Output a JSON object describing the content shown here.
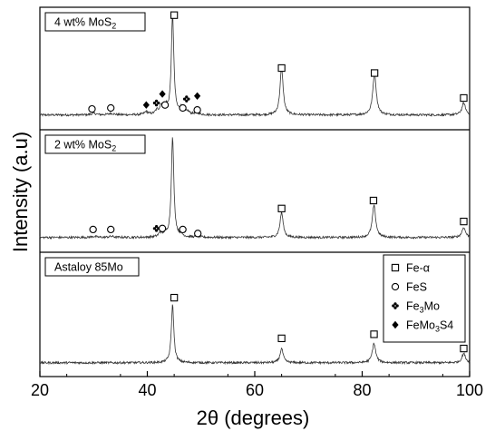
{
  "chart_data": {
    "type": "line",
    "title": "",
    "xlabel": "2θ (degrees)",
    "ylabel": "Intensity (a.u)",
    "xlim": [
      20,
      100
    ],
    "xticks": [
      20,
      40,
      60,
      80,
      100
    ],
    "grid": false,
    "legend_position": "top-right of bottom panel",
    "series": [
      {
        "panel": "top",
        "label": "4 wt% MoS",
        "label_sub": "2",
        "background": 0.03,
        "peaks": [
          {
            "x": 44.7,
            "h": 1.0,
            "w": 0.28
          },
          {
            "x": 65.0,
            "h": 0.47,
            "w": 0.35
          },
          {
            "x": 82.3,
            "h": 0.42,
            "w": 0.38
          },
          {
            "x": 98.9,
            "h": 0.12,
            "w": 0.4
          },
          {
            "x": 30.0,
            "h": 0.015,
            "w": 0.6
          },
          {
            "x": 33.3,
            "h": 0.015,
            "w": 0.6
          },
          {
            "x": 39.8,
            "h": 0.03,
            "w": 0.4
          },
          {
            "x": 41.8,
            "h": 0.04,
            "w": 0.4
          },
          {
            "x": 42.6,
            "h": 0.09,
            "w": 0.3
          },
          {
            "x": 43.5,
            "h": 0.07,
            "w": 0.3
          },
          {
            "x": 46.3,
            "h": 0.06,
            "w": 0.35
          },
          {
            "x": 47.5,
            "h": 0.03,
            "w": 0.4
          },
          {
            "x": 49.2,
            "h": 0.02,
            "w": 0.5
          }
        ],
        "markers": [
          {
            "x": 45.0,
            "y": 1.03,
            "symbol": "square"
          },
          {
            "x": 65.0,
            "y": 0.5,
            "symbol": "square"
          },
          {
            "x": 82.3,
            "y": 0.45,
            "symbol": "square"
          },
          {
            "x": 98.9,
            "y": 0.2,
            "symbol": "square"
          },
          {
            "x": 29.7,
            "y": 0.09,
            "symbol": "circle"
          },
          {
            "x": 33.2,
            "y": 0.1,
            "symbol": "circle"
          },
          {
            "x": 39.8,
            "y": 0.13,
            "symbol": "diamond"
          },
          {
            "x": 41.7,
            "y": 0.15,
            "symbol": "cross"
          },
          {
            "x": 42.8,
            "y": 0.24,
            "symbol": "diamond"
          },
          {
            "x": 43.3,
            "y": 0.13,
            "symbol": "circle"
          },
          {
            "x": 46.6,
            "y": 0.1,
            "symbol": "circle"
          },
          {
            "x": 47.3,
            "y": 0.19,
            "symbol": "cross"
          },
          {
            "x": 49.3,
            "y": 0.22,
            "symbol": "diamond"
          },
          {
            "x": 49.3,
            "y": 0.08,
            "symbol": "circle"
          }
        ]
      },
      {
        "panel": "middle",
        "label": "2 wt% MoS",
        "label_sub": "2",
        "background": 0.03,
        "peaks": [
          {
            "x": 44.7,
            "h": 1.0,
            "w": 0.28
          },
          {
            "x": 65.0,
            "h": 0.25,
            "w": 0.35
          },
          {
            "x": 82.2,
            "h": 0.32,
            "w": 0.38
          },
          {
            "x": 98.9,
            "h": 0.1,
            "w": 0.4
          },
          {
            "x": 30.0,
            "h": 0.01,
            "w": 0.6
          },
          {
            "x": 33.3,
            "h": 0.01,
            "w": 0.6
          },
          {
            "x": 42.4,
            "h": 0.04,
            "w": 0.35
          },
          {
            "x": 43.3,
            "h": 0.03,
            "w": 0.35
          },
          {
            "x": 46.3,
            "h": 0.02,
            "w": 0.4
          },
          {
            "x": 49.4,
            "h": 0.01,
            "w": 0.5
          }
        ],
        "markers": [
          {
            "x": 29.9,
            "y": 0.11,
            "symbol": "circle"
          },
          {
            "x": 33.2,
            "y": 0.11,
            "symbol": "circle"
          },
          {
            "x": 41.7,
            "y": 0.12,
            "symbol": "cross"
          },
          {
            "x": 42.8,
            "y": 0.12,
            "symbol": "circle"
          },
          {
            "x": 46.6,
            "y": 0.11,
            "symbol": "circle"
          },
          {
            "x": 49.4,
            "y": 0.07,
            "symbol": "circle"
          },
          {
            "x": 65.0,
            "y": 0.32,
            "symbol": "square"
          },
          {
            "x": 82.1,
            "y": 0.4,
            "symbol": "square"
          },
          {
            "x": 98.9,
            "y": 0.19,
            "symbol": "square"
          }
        ]
      },
      {
        "panel": "bottom",
        "label": "Astaloy 85Mo",
        "label_sub": "",
        "background": 0.02,
        "peaks": [
          {
            "x": 44.7,
            "h": 0.57,
            "w": 0.28
          },
          {
            "x": 65.0,
            "h": 0.14,
            "w": 0.35
          },
          {
            "x": 82.2,
            "h": 0.19,
            "w": 0.38
          },
          {
            "x": 98.9,
            "h": 0.09,
            "w": 0.4
          }
        ],
        "markers": [
          {
            "x": 45.0,
            "y": 0.66,
            "symbol": "square"
          },
          {
            "x": 65.0,
            "y": 0.26,
            "symbol": "square"
          },
          {
            "x": 82.2,
            "y": 0.3,
            "symbol": "square"
          },
          {
            "x": 98.9,
            "y": 0.16,
            "symbol": "square"
          }
        ]
      }
    ],
    "legend": [
      {
        "symbol": "square",
        "text": "Fe-α",
        "sub": "",
        "tail": ""
      },
      {
        "symbol": "circle",
        "text": "FeS",
        "sub": "",
        "tail": ""
      },
      {
        "symbol": "cross",
        "text": "Fe",
        "sub": "3",
        "tail": "Mo"
      },
      {
        "symbol": "diamond",
        "text": "FeMo",
        "sub": "3",
        "tail": "S4"
      }
    ]
  }
}
